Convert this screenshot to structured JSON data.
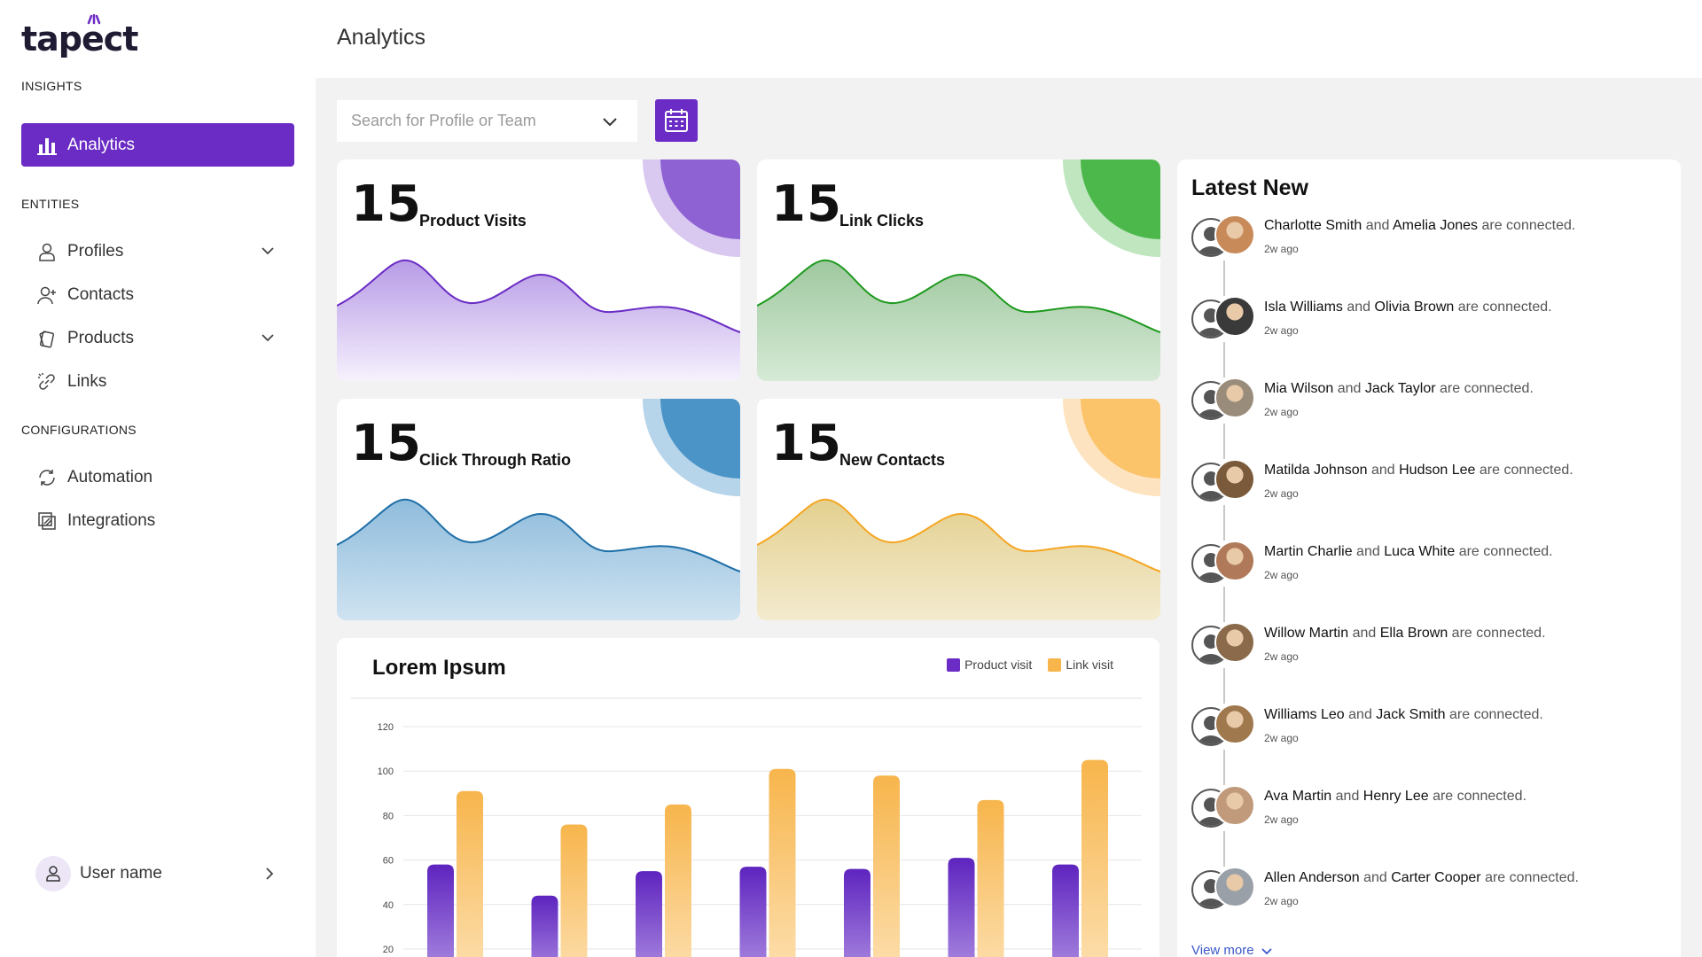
{
  "app": {
    "logo": "tapect",
    "page_title": "Analytics"
  },
  "sidebar": {
    "sections": [
      {
        "label": "INSIGHTS"
      },
      {
        "label": "ENTITIES"
      },
      {
        "label": "CONFIGURATIONS"
      }
    ],
    "items": [
      {
        "label": "Analytics",
        "icon": "bar-chart-icon",
        "active": true
      },
      {
        "label": "Profiles",
        "icon": "user-icon",
        "expandable": true
      },
      {
        "label": "Contacts",
        "icon": "add-user-icon"
      },
      {
        "label": "Products",
        "icon": "cards-icon",
        "expandable": true
      },
      {
        "label": "Links",
        "icon": "link-icon"
      },
      {
        "label": "Automation",
        "icon": "refresh-icon"
      },
      {
        "label": "Integrations",
        "icon": "integrations-icon"
      }
    ],
    "user": {
      "label": "User name"
    }
  },
  "toolbar": {
    "search_placeholder": "Search for Profile or Team"
  },
  "stats": [
    {
      "value": "15",
      "label": "Product Visits",
      "color": "#6a2cc4"
    },
    {
      "value": "15",
      "label": "Link Clicks",
      "color": "#2ea62e"
    },
    {
      "value": "15",
      "label": "Click Through Ratio",
      "color": "#2e7fbf"
    },
    {
      "value": "15",
      "label": "New Contacts",
      "color": "#f7a93c"
    }
  ],
  "latest": {
    "title": "Latest New",
    "connector": "and",
    "suffix": "are connected.",
    "items": [
      {
        "a": "Charlotte Smith",
        "b": "Amelia Jones",
        "time": "2w ago"
      },
      {
        "a": "Isla Williams",
        "b": "Olivia Brown",
        "time": "2w ago"
      },
      {
        "a": "Mia Wilson",
        "b": "Jack Taylor",
        "time": "2w ago"
      },
      {
        "a": "Matilda Johnson",
        "b": "Hudson Lee",
        "time": "2w ago"
      },
      {
        "a": "Martin Charlie",
        "b": "Luca White",
        "time": "2w ago"
      },
      {
        "a": "Willow Martin",
        "b": "Ella Brown",
        "time": "2w ago"
      },
      {
        "a": "Williams Leo",
        "b": "Jack Smith",
        "time": "2w ago"
      },
      {
        "a": "Ava Martin",
        "b": "Henry Lee",
        "time": "2w ago"
      },
      {
        "a": "Allen Anderson",
        "b": "Carter Cooper",
        "time": "2w ago"
      }
    ],
    "view_more": "View more"
  },
  "chart_data": {
    "type": "bar",
    "title": "Lorem Ipsum",
    "categories": [
      "",
      "",
      "",
      "",
      "",
      "",
      ""
    ],
    "series": [
      {
        "name": "Product visit",
        "color": "#6a2cc4",
        "values": [
          58,
          44,
          55,
          57,
          56,
          61,
          58
        ]
      },
      {
        "name": "Link visit",
        "color": "#f7b54c",
        "values": [
          91,
          76,
          85,
          101,
          98,
          87,
          105
        ]
      }
    ],
    "y_ticks": [
      "20",
      "40",
      "60",
      "80",
      "100",
      "120"
    ],
    "ylim": [
      20,
      120
    ],
    "grid": true,
    "legend": "top-right"
  }
}
